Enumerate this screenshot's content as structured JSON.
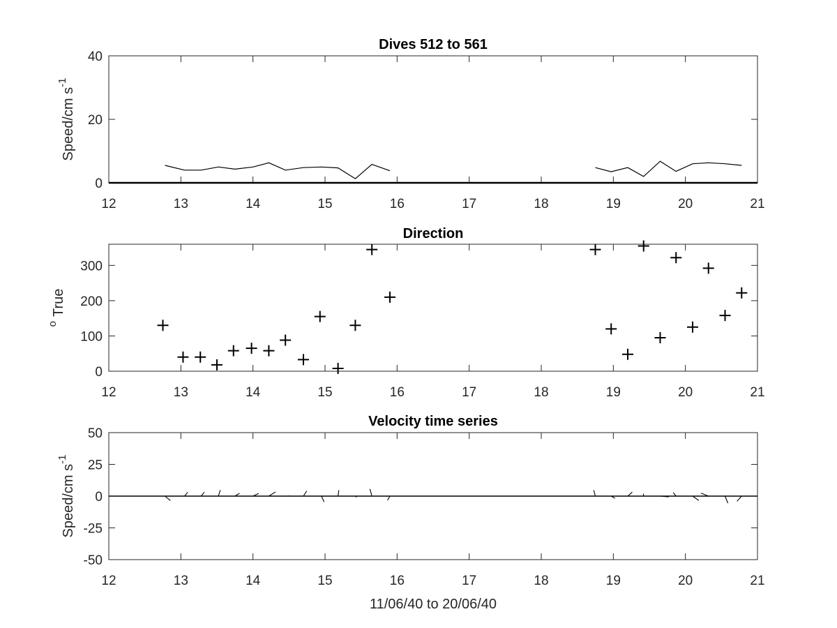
{
  "chart_data": [
    {
      "type": "line",
      "title": "Dives 512 to 561",
      "xlabel": "",
      "ylabel_base": "Speed/cm s",
      "ylabel_sup": "-1",
      "xlim": [
        12,
        21
      ],
      "ylim": [
        0,
        40
      ],
      "xticks": [
        "12",
        "13",
        "14",
        "15",
        "16",
        "17",
        "18",
        "19",
        "20",
        "21"
      ],
      "yticks": [
        "0",
        "20",
        "40"
      ],
      "baseline": 0,
      "series": [
        {
          "x": [
            12.78,
            13.05,
            13.28,
            13.52,
            13.75,
            14.0,
            14.22,
            14.45,
            14.7,
            14.95,
            15.18,
            15.42,
            15.65,
            15.9
          ],
          "y": [
            5.5,
            4.0,
            4.0,
            5.0,
            4.3,
            5.0,
            6.3,
            4.0,
            4.8,
            5.0,
            4.7,
            1.3,
            5.8,
            3.8
          ]
        },
        {
          "x": [
            18.75,
            18.97,
            19.2,
            19.42,
            19.65,
            19.87,
            20.1,
            20.32,
            20.55,
            20.78
          ],
          "y": [
            4.8,
            3.5,
            4.8,
            2.0,
            6.8,
            3.6,
            6.0,
            6.3,
            6.0,
            5.5
          ]
        }
      ]
    },
    {
      "type": "scatter",
      "title": "Direction",
      "xlabel": "",
      "ylabel_base": "True",
      "ylabel_sup": "o",
      "xlim": [
        12,
        21
      ],
      "ylim": [
        0,
        360
      ],
      "xticks": [
        "12",
        "13",
        "14",
        "15",
        "16",
        "17",
        "18",
        "19",
        "20",
        "21"
      ],
      "yticks": [
        "0",
        "100",
        "200",
        "300"
      ],
      "x": [
        12.75,
        13.03,
        13.27,
        13.5,
        13.73,
        13.98,
        14.22,
        14.45,
        14.7,
        14.93,
        15.18,
        15.42,
        15.65,
        15.9,
        18.75,
        18.97,
        19.2,
        19.42,
        19.65,
        19.87,
        20.1,
        20.32,
        20.55,
        20.78
      ],
      "y": [
        130,
        40,
        40,
        18,
        58,
        65,
        58,
        88,
        33,
        155,
        8,
        130,
        345,
        210,
        345,
        120,
        48,
        355,
        95,
        322,
        125,
        292,
        158,
        222
      ]
    },
    {
      "type": "line",
      "title": "Velocity time series",
      "xlabel": "11/06/40 to 20/06/40",
      "ylabel_base": "Speed/cm s",
      "ylabel_sup": "-1",
      "xlim": [
        12,
        21
      ],
      "ylim": [
        -50,
        50
      ],
      "xticks": [
        "12",
        "13",
        "14",
        "15",
        "16",
        "17",
        "18",
        "19",
        "20",
        "21"
      ],
      "yticks": [
        "-50",
        "-25",
        "0",
        "25",
        "50"
      ],
      "baseline": 0,
      "vectors": {
        "t": [
          12.78,
          13.05,
          13.28,
          13.52,
          13.75,
          14.0,
          14.22,
          14.45,
          14.7,
          14.95,
          15.18,
          15.42,
          15.65,
          15.9,
          18.75,
          18.97,
          19.2,
          19.42,
          19.65,
          19.87,
          20.1,
          20.32,
          20.55,
          20.78
        ],
        "speed": [
          5.5,
          4.0,
          4.0,
          5.0,
          4.3,
          5.0,
          6.3,
          4.0,
          4.8,
          5.0,
          4.7,
          1.3,
          5.8,
          3.8,
          4.8,
          3.5,
          4.8,
          2.0,
          6.8,
          3.6,
          6.0,
          6.3,
          6.0,
          5.5
        ],
        "direction": [
          130,
          40,
          40,
          18,
          58,
          65,
          58,
          88,
          33,
          155,
          8,
          130,
          345,
          210,
          345,
          120,
          48,
          355,
          95,
          322,
          125,
          292,
          158,
          222
        ]
      }
    }
  ]
}
